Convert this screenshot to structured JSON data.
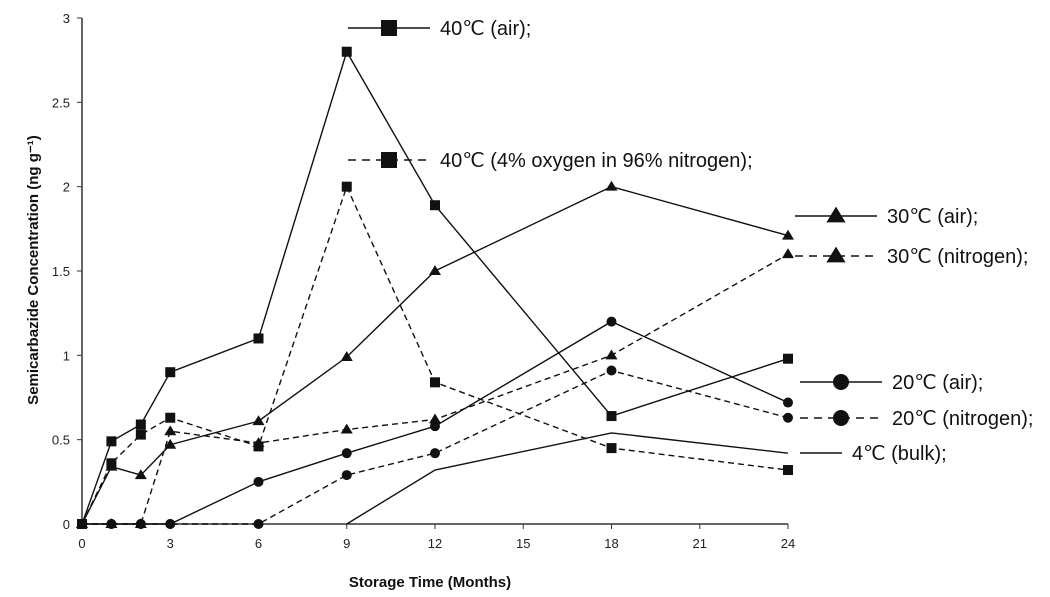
{
  "chart_data": {
    "type": "line",
    "xlabel": "Storage Time (Months)",
    "ylabel": "Semicarbazide Concentration (ng g⁻¹)",
    "xlim": [
      0,
      24
    ],
    "ylim": [
      0,
      3
    ],
    "x_ticks": [
      "0",
      "3",
      "6",
      "9",
      "12",
      "15",
      "18",
      "21",
      "24"
    ],
    "y_ticks": [
      "0",
      "0.5",
      "1",
      "1.5",
      "2",
      "2.5",
      "3"
    ],
    "grid": false,
    "series": [
      {
        "name": "40℃ (air);",
        "marker": "square",
        "dash": false,
        "x": [
          0,
          1,
          2,
          3,
          6,
          9,
          12,
          18,
          24
        ],
        "y": [
          0,
          0.49,
          0.59,
          0.9,
          1.1,
          2.8,
          1.89,
          0.64,
          0.98
        ]
      },
      {
        "name": "40℃  (4% oxygen in 96% nitrogen);",
        "marker": "square",
        "dash": true,
        "x": [
          0,
          1,
          2,
          3,
          6,
          9,
          12,
          18,
          24
        ],
        "y": [
          0,
          0.36,
          0.53,
          0.63,
          0.46,
          2.0,
          0.84,
          0.45,
          0.32
        ]
      },
      {
        "name": "30℃ (air);",
        "marker": "triangle",
        "dash": false,
        "x": [
          0,
          1,
          2,
          3,
          6,
          9,
          12,
          18,
          24
        ],
        "y": [
          0,
          0.34,
          0.29,
          0.47,
          0.61,
          0.99,
          1.5,
          2.0,
          1.71
        ]
      },
      {
        "name": "30℃ (nitrogen);",
        "marker": "triangle",
        "dash": true,
        "x": [
          0,
          1,
          2,
          3,
          6,
          9,
          12,
          18,
          24
        ],
        "y": [
          0,
          0,
          0,
          0.55,
          0.48,
          0.56,
          0.62,
          1.0,
          1.6
        ]
      },
      {
        "name": "20℃ (air);",
        "marker": "circle",
        "dash": false,
        "x": [
          0,
          1,
          2,
          3,
          6,
          9,
          12,
          18,
          24
        ],
        "y": [
          0,
          0,
          0,
          0,
          0.25,
          0.42,
          0.58,
          1.2,
          0.72
        ]
      },
      {
        "name": "20℃ (nitrogen);",
        "marker": "circle",
        "dash": true,
        "x": [
          0,
          1,
          2,
          3,
          6,
          9,
          12,
          18,
          24
        ],
        "y": [
          0,
          0,
          0,
          0,
          0,
          0.29,
          0.42,
          0.91,
          0.63
        ]
      },
      {
        "name": "4℃ (bulk);",
        "marker": "none",
        "dash": false,
        "x": [
          9,
          12,
          18,
          24
        ],
        "y": [
          0,
          0.32,
          0.54,
          0.42
        ]
      }
    ]
  }
}
